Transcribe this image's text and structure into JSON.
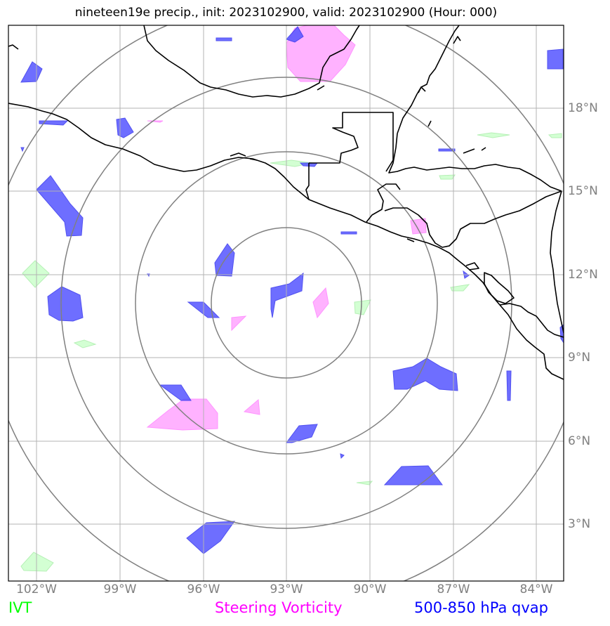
{
  "title": "nineteen19e precip., init: 2023102900, valid: 2023102900 (Hour: 000)",
  "axes": {
    "lon_labels": [
      "102°W",
      "99°W",
      "96°W",
      "93°W",
      "90°W",
      "87°W",
      "84°W"
    ],
    "lat_labels": [
      "18°N",
      "15°N",
      "12°N",
      "9°N",
      "6°N",
      "3°N"
    ]
  },
  "legend": {
    "ivt": {
      "label": "IVT",
      "color": "#00ff00"
    },
    "vorticity": {
      "label": "Steering Vorticity",
      "color": "#ff00ff"
    },
    "qvap": {
      "label": "500-850 hPa qvap",
      "color": "#0000ff"
    }
  },
  "colors": {
    "ivt_fill": "#ccffcc",
    "vorticity_fill": "#ffaaff",
    "qvap_fill": "#5555ff",
    "grid": "#b3b3b3",
    "rings": "#808080",
    "coast": "#000000"
  }
}
